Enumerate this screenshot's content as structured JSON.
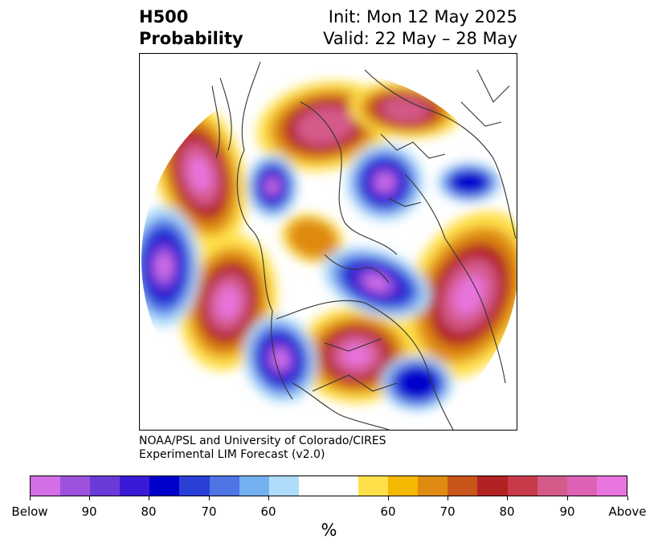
{
  "header": {
    "title_line1": "H500",
    "title_line2": "Probability",
    "init": "Init: Mon 12 May 2025",
    "valid": "Valid: 22 May – 28 May"
  },
  "credit": {
    "line1": "NOAA/PSL and University of Colorado/CIRES",
    "line2": "Experimental LIM Forecast (v2.0)"
  },
  "colorbar": {
    "colors": [
      "#d36ee6",
      "#9c52dc",
      "#6a3ad8",
      "#3a1ad6",
      "#0000cc",
      "#2a3fd6",
      "#4f74e6",
      "#72b0f0",
      "#aedcfa",
      "#ffffff",
      "#ffffff",
      "#ffe04a",
      "#f5b800",
      "#df8a10",
      "#c8551a",
      "#b22222",
      "#c83a4a",
      "#d45a8a",
      "#dd62b6",
      "#e874de"
    ],
    "tick_labels": [
      "Below",
      "90",
      "80",
      "70",
      "60",
      "60",
      "70",
      "80",
      "90",
      "Above"
    ],
    "units": "%"
  },
  "map": {
    "fill_colors": {
      "below_extreme": "#d36ee6",
      "below_90": "#6a3ad8",
      "below_80": "#0000cc",
      "below_70": "#4f74e6",
      "below_60": "#aedcfa",
      "above_60": "#ffe04a",
      "above_70": "#df8a10",
      "above_80": "#b22222",
      "above_90": "#d45a8a",
      "above_extreme": "#e874de"
    },
    "coastline_color": "#333333"
  }
}
